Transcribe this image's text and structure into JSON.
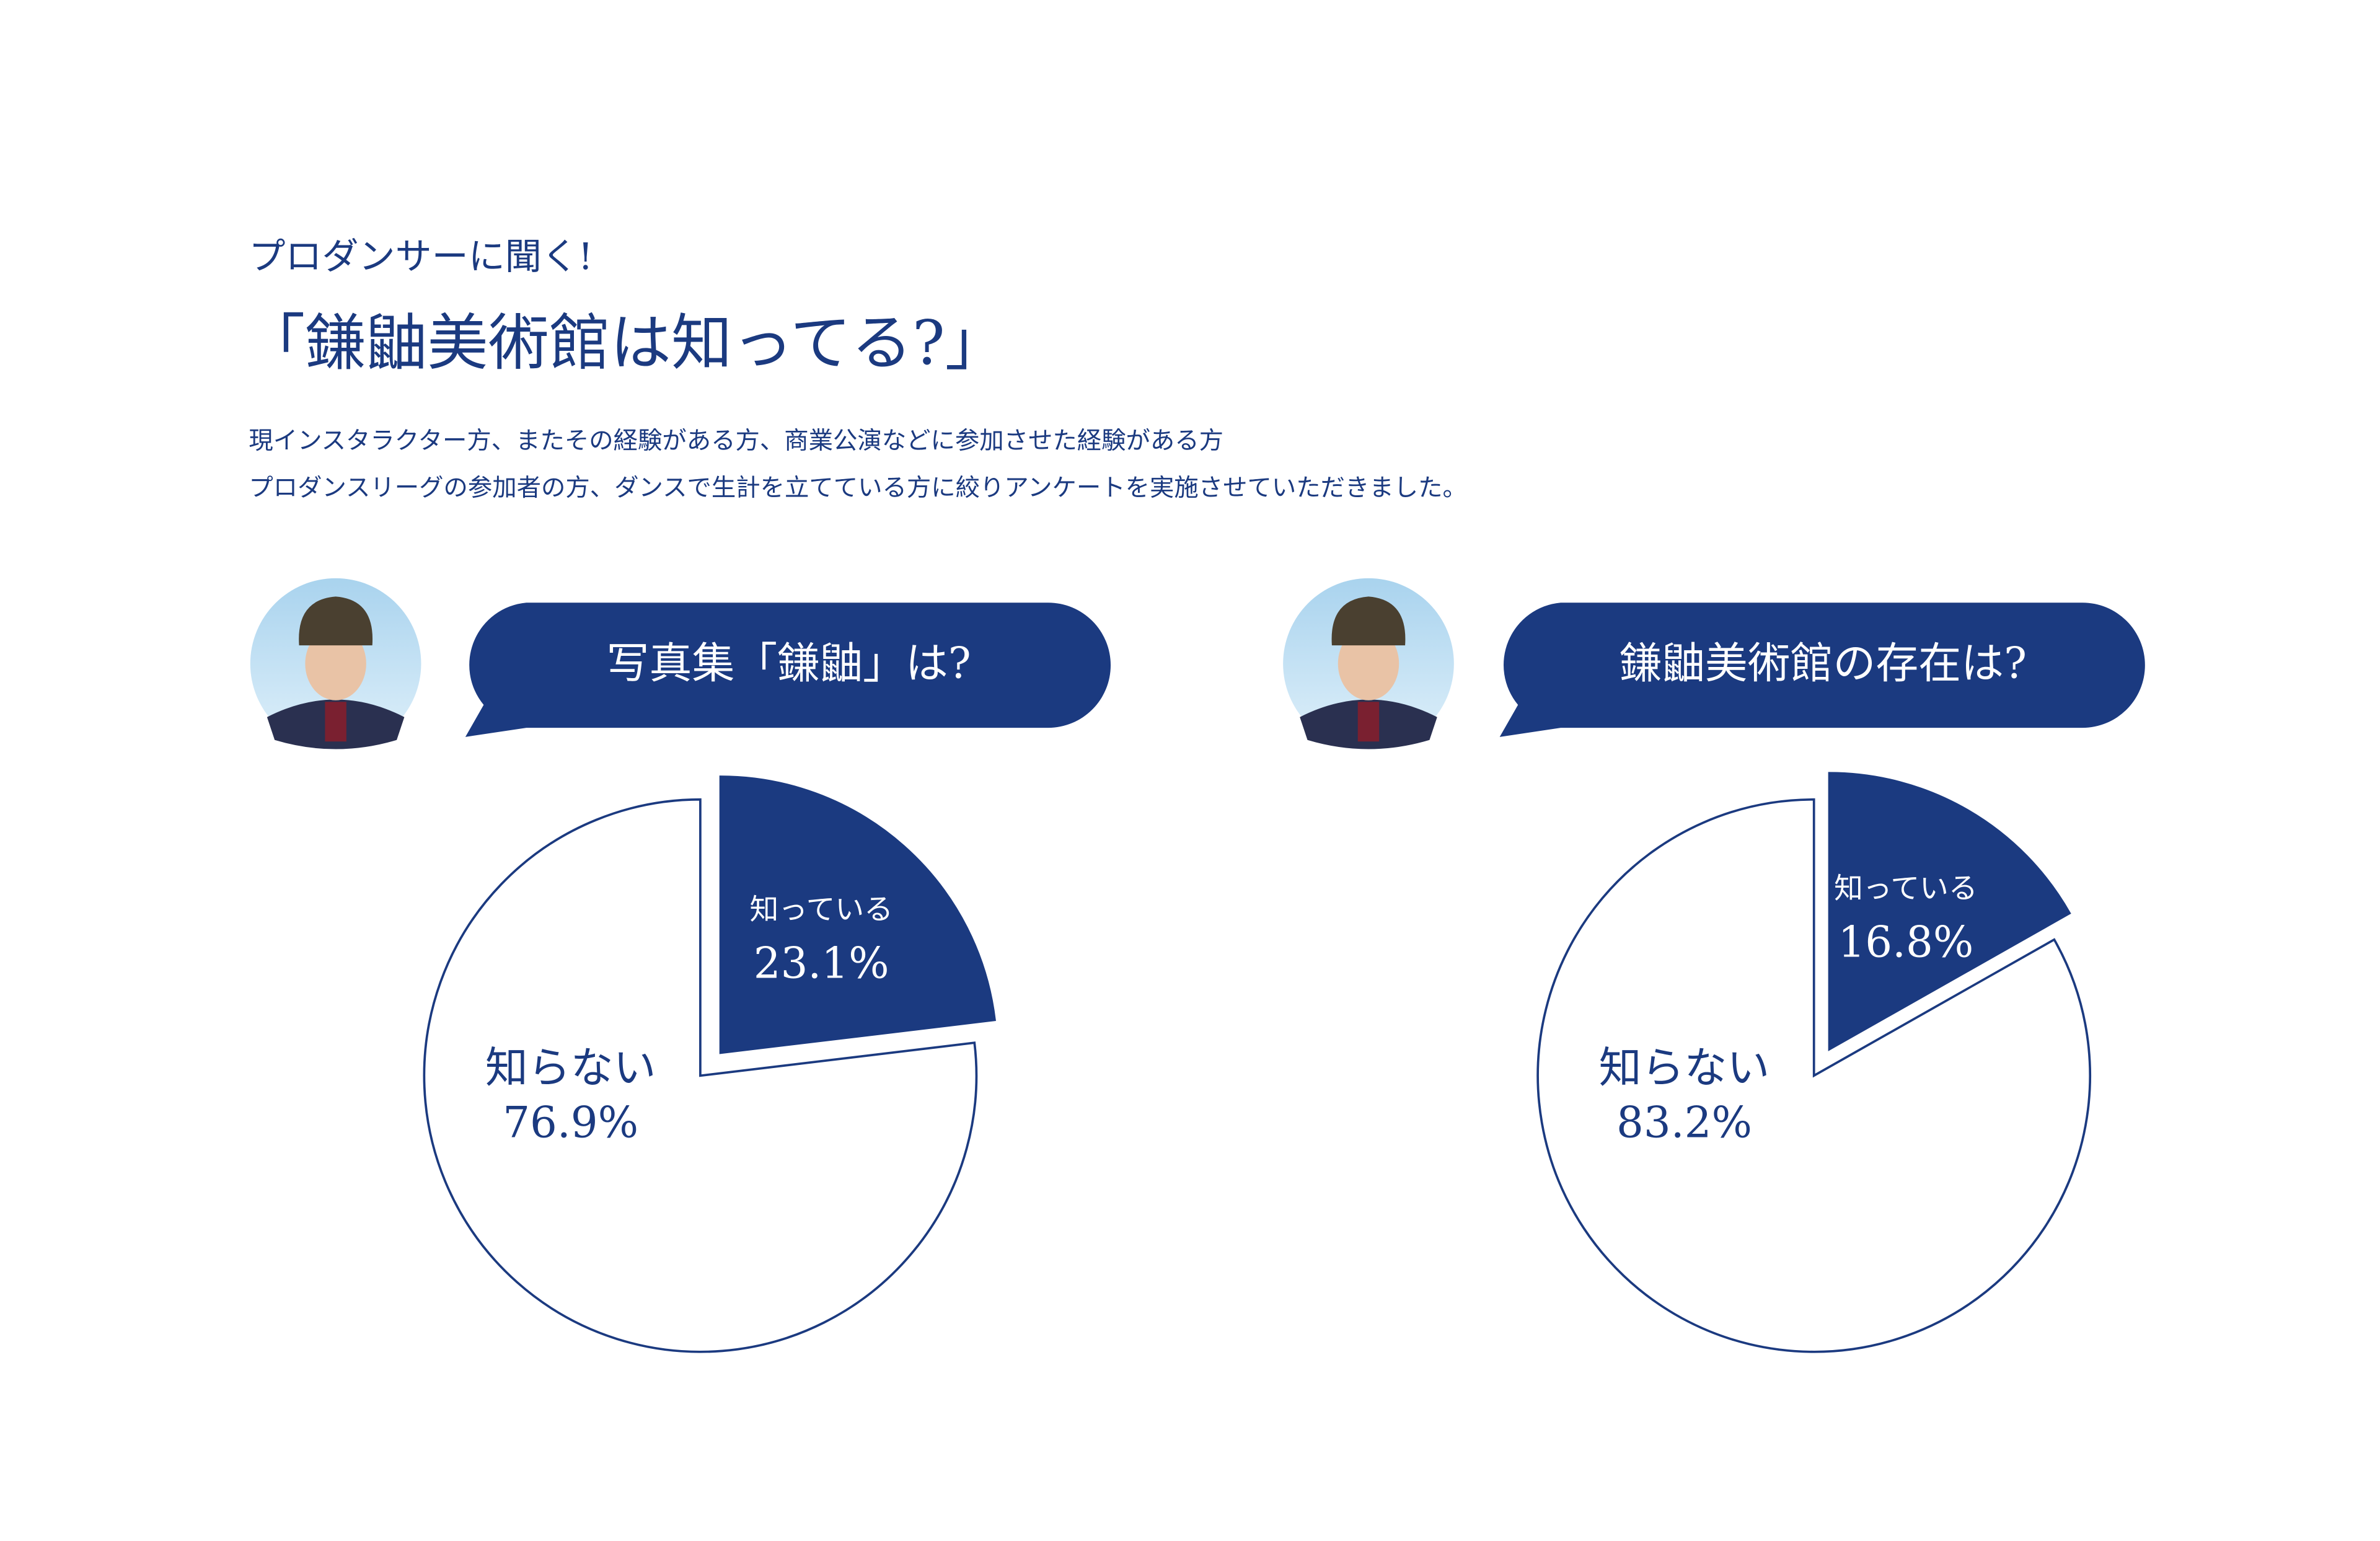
{
  "header": {
    "kicker": "プロダンサーに聞く!",
    "title": "「鎌鼬美術館は知ってる?」",
    "description": [
      "現インスタラクター方、またその経験がある方、商業公演などに参加させた経験がある方",
      "プロダンスリーグの参加者の方、ダンスで生計を立てている方に絞りアンケートを実施させていただきました。"
    ]
  },
  "chart_data": [
    {
      "type": "pie",
      "title": "写真集「鎌鼬」は?",
      "categories": [
        "知っている",
        "知らない"
      ],
      "values": [
        23.1,
        76.9
      ],
      "value_labels": [
        "23.1%",
        "76.9%"
      ],
      "colors": [
        "#1b3a80",
        "#ffffff"
      ]
    },
    {
      "type": "pie",
      "title": "鎌鼬美術館の存在は?",
      "categories": [
        "知っている",
        "知らない"
      ],
      "values": [
        16.8,
        83.2
      ],
      "value_labels": [
        "16.8%",
        "83.2%"
      ],
      "colors": [
        "#1b3a80",
        "#ffffff"
      ]
    }
  ]
}
